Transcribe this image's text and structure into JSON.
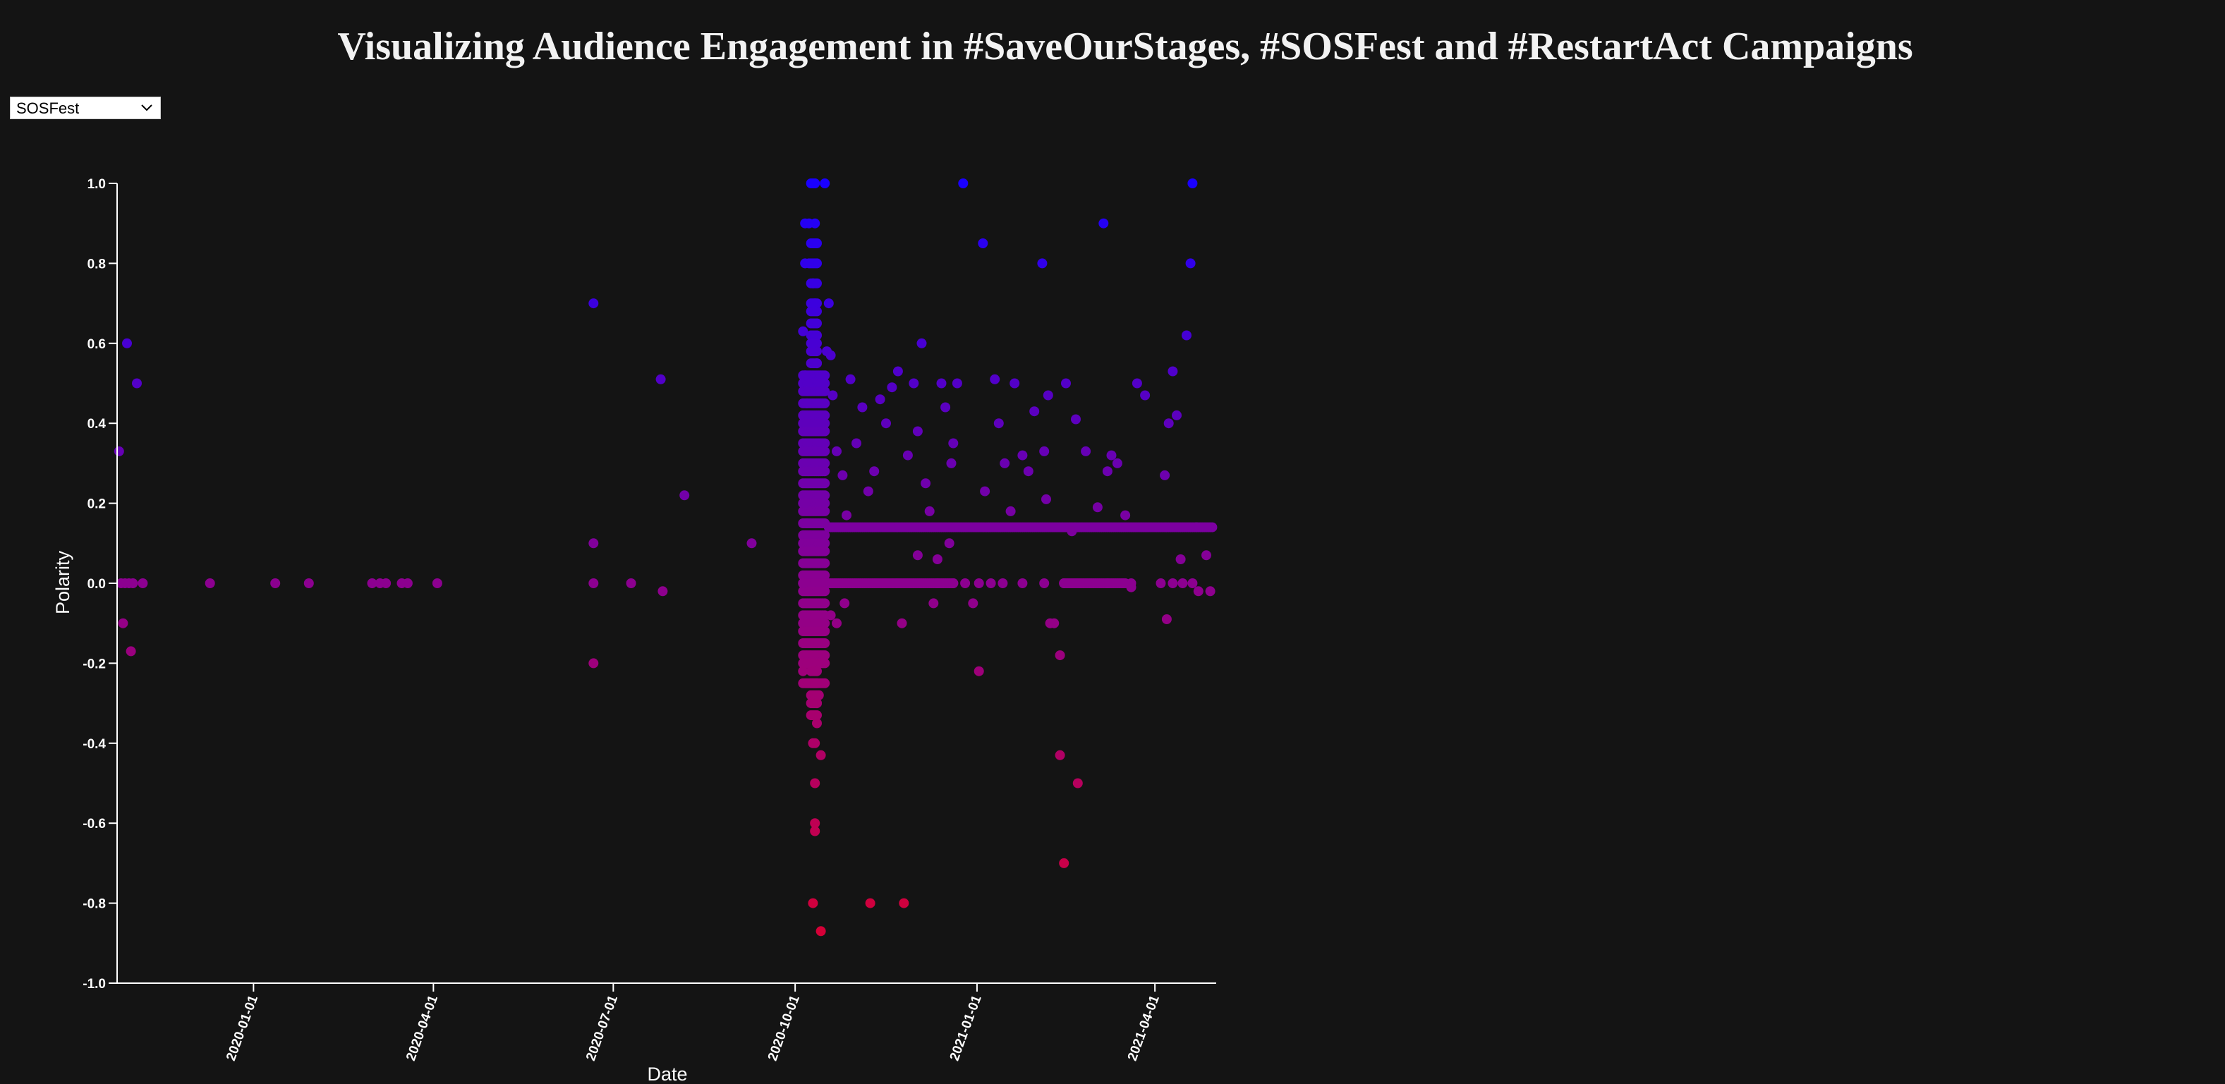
{
  "page": {
    "title": "Visualizing Audience Engagement in #SaveOurStages, #SOSFest and #RestartAct Campaigns"
  },
  "controls": {
    "campaign_select": {
      "value": "SOSFest",
      "icon": "chevron-down-icon"
    }
  },
  "chart_data": {
    "type": "scatter",
    "title": "",
    "xlabel": "Date",
    "ylabel": "Polarity",
    "x_type": "date",
    "xlim": [
      "2019-10-24",
      "2021-05-02"
    ],
    "ylim": [
      -1.0,
      1.0
    ],
    "x_ticks": [
      "2020-01-01",
      "2020-04-01",
      "2020-07-01",
      "2020-10-01",
      "2021-01-01",
      "2021-04-01"
    ],
    "y_ticks": [
      "1.0",
      "0.8",
      "0.6",
      "0.4",
      "0.2",
      "0.0",
      "-0.2",
      "-0.4",
      "-0.6",
      "-0.8",
      "-1.0"
    ],
    "grid": false,
    "color_scale": {
      "low": "#e0002a",
      "mid": "#8c0090",
      "high": "#1a00ff"
    },
    "series": [
      {
        "points": [
          [
            "2019-10-25",
            0.33
          ],
          [
            "2019-10-26",
            0.0
          ],
          [
            "2019-10-27",
            -0.1
          ],
          [
            "2019-10-28",
            0.0
          ],
          [
            "2019-10-29",
            0.6
          ],
          [
            "2019-10-30",
            0.0
          ],
          [
            "2019-10-31",
            -0.17
          ],
          [
            "2019-11-01",
            0.0
          ],
          [
            "2019-11-03",
            0.5
          ],
          [
            "2019-11-06",
            0.0
          ],
          [
            "2019-12-10",
            0.0
          ],
          [
            "2020-01-12",
            0.0
          ],
          [
            "2020-01-29",
            0.0
          ],
          [
            "2020-03-01",
            0.0
          ],
          [
            "2020-03-05",
            0.0
          ],
          [
            "2020-03-08",
            0.0
          ],
          [
            "2020-03-16",
            0.0
          ],
          [
            "2020-03-19",
            0.0
          ],
          [
            "2020-04-03",
            0.0
          ],
          [
            "2020-06-21",
            0.7
          ],
          [
            "2020-06-21",
            0.1
          ],
          [
            "2020-06-21",
            0.0
          ],
          [
            "2020-06-21",
            -0.2
          ],
          [
            "2020-07-10",
            0.0
          ],
          [
            "2020-07-25",
            0.51
          ],
          [
            "2020-07-26",
            -0.02
          ],
          [
            "2020-08-06",
            0.22
          ],
          [
            "2020-09-09",
            0.1
          ],
          [
            "2020-10-05",
            0.0
          ],
          [
            "2020-10-05",
            -0.22
          ],
          [
            "2020-10-05",
            0.63
          ],
          [
            "2020-10-06",
            0.9
          ],
          [
            "2020-10-06",
            0.8
          ],
          [
            "2020-10-06",
            0.52
          ],
          [
            "2020-10-06",
            0.2
          ],
          [
            "2020-10-07",
            0.45
          ],
          [
            "2020-10-07",
            0.15
          ],
          [
            "2020-10-08",
            0.9
          ],
          [
            "2020-10-08",
            0.8
          ],
          [
            "2020-10-09",
            1.0
          ],
          [
            "2020-10-10",
            1.0
          ],
          [
            "2020-10-11",
            1.0
          ],
          [
            "2020-10-11",
            0.9
          ],
          [
            "2020-10-10",
            0.75
          ],
          [
            "2020-10-11",
            0.7
          ],
          [
            "2020-10-10",
            0.6
          ],
          [
            "2020-10-12",
            0.55
          ],
          [
            "2020-10-11",
            -0.4
          ],
          [
            "2020-10-10",
            -0.4
          ],
          [
            "2020-10-11",
            -0.5
          ],
          [
            "2020-10-11",
            -0.6
          ],
          [
            "2020-10-11",
            -0.62
          ],
          [
            "2020-10-10",
            -0.8
          ],
          [
            "2020-10-12",
            -0.35
          ],
          [
            "2020-10-13",
            -0.28
          ],
          [
            "2020-10-12",
            -0.3
          ],
          [
            "2020-10-14",
            -0.43
          ],
          [
            "2020-10-14",
            -0.87
          ],
          [
            "2020-10-16",
            1.0
          ],
          [
            "2020-10-17",
            0.58
          ],
          [
            "2020-10-18",
            0.7
          ],
          [
            "2020-10-19",
            0.57
          ],
          [
            "2020-10-20",
            0.47
          ],
          [
            "2020-10-22",
            0.33
          ],
          [
            "2020-10-25",
            0.27
          ],
          [
            "2020-10-27",
            0.17
          ],
          [
            "2020-10-19",
            -0.08
          ],
          [
            "2020-10-22",
            -0.1
          ],
          [
            "2020-10-26",
            -0.05
          ],
          [
            "2020-10-29",
            0.51
          ],
          [
            "2020-11-01",
            0.35
          ],
          [
            "2020-11-04",
            0.44
          ],
          [
            "2020-11-07",
            0.23
          ],
          [
            "2020-11-08",
            -0.8
          ],
          [
            "2020-11-10",
            0.28
          ],
          [
            "2020-11-13",
            0.46
          ],
          [
            "2020-11-16",
            0.4
          ],
          [
            "2020-11-19",
            0.49
          ],
          [
            "2020-11-22",
            0.53
          ],
          [
            "2020-11-24",
            -0.1
          ],
          [
            "2020-11-25",
            -0.8
          ],
          [
            "2020-11-27",
            0.32
          ],
          [
            "2020-11-30",
            0.5
          ],
          [
            "2020-12-02",
            0.38
          ],
          [
            "2020-12-04",
            0.6
          ],
          [
            "2020-12-06",
            0.25
          ],
          [
            "2020-12-08",
            0.18
          ],
          [
            "2020-12-10",
            -0.05
          ],
          [
            "2020-12-12",
            0.06
          ],
          [
            "2020-12-14",
            0.5
          ],
          [
            "2020-12-16",
            0.44
          ],
          [
            "2020-12-18",
            0.1
          ],
          [
            "2020-12-19",
            0.3
          ],
          [
            "2020-12-20",
            0.35
          ],
          [
            "2020-12-22",
            0.5
          ],
          [
            "2020-12-25",
            1.0
          ],
          [
            "2020-12-30",
            -0.05
          ],
          [
            "2021-01-04",
            0.85
          ],
          [
            "2021-01-05",
            0.23
          ],
          [
            "2021-01-02",
            -0.22
          ],
          [
            "2021-01-10",
            0.51
          ],
          [
            "2021-01-12",
            0.4
          ],
          [
            "2021-01-15",
            0.3
          ],
          [
            "2021-01-18",
            0.18
          ],
          [
            "2021-01-20",
            0.5
          ],
          [
            "2021-01-24",
            0.32
          ],
          [
            "2021-01-27",
            0.28
          ],
          [
            "2021-01-30",
            0.43
          ],
          [
            "2021-02-03",
            0.8
          ],
          [
            "2021-02-04",
            0.33
          ],
          [
            "2021-02-05",
            0.21
          ],
          [
            "2021-02-06",
            0.47
          ],
          [
            "2021-02-07",
            -0.1
          ],
          [
            "2021-02-09",
            -0.1
          ],
          [
            "2021-02-12",
            -0.18
          ],
          [
            "2021-02-12",
            -0.43
          ],
          [
            "2021-02-14",
            -0.7
          ],
          [
            "2021-02-15",
            0.5
          ],
          [
            "2021-02-18",
            0.13
          ],
          [
            "2021-02-20",
            0.41
          ],
          [
            "2021-02-21",
            -0.5
          ],
          [
            "2021-02-25",
            0.33
          ],
          [
            "2021-03-03",
            0.19
          ],
          [
            "2021-03-06",
            0.9
          ],
          [
            "2021-03-08",
            0.28
          ],
          [
            "2021-03-10",
            0.32
          ],
          [
            "2021-03-13",
            0.3
          ],
          [
            "2021-03-17",
            0.17
          ],
          [
            "2021-03-20",
            -0.01
          ],
          [
            "2021-03-23",
            0.5
          ],
          [
            "2021-03-27",
            0.47
          ],
          [
            "2021-04-06",
            0.27
          ],
          [
            "2021-04-07",
            -0.09
          ],
          [
            "2021-04-08",
            0.4
          ],
          [
            "2021-04-10",
            0.53
          ],
          [
            "2021-04-12",
            0.42
          ],
          [
            "2021-04-14",
            0.06
          ],
          [
            "2021-04-17",
            0.62
          ],
          [
            "2021-04-19",
            0.8
          ],
          [
            "2021-04-20",
            1.0
          ],
          [
            "2021-04-20",
            0.0
          ],
          [
            "2021-04-23",
            -0.02
          ],
          [
            "2021-04-27",
            0.07
          ],
          [
            "2021-04-29",
            -0.02
          ],
          [
            "2021-04-22",
            0.14
          ],
          [
            "2021-04-15",
            0.0
          ],
          [
            "2021-04-10",
            0.0
          ],
          [
            "2021-04-04",
            0.0
          ],
          [
            "2021-03-20",
            0.0
          ],
          [
            "2021-03-08",
            0.0
          ],
          [
            "2021-02-14",
            0.0
          ],
          [
            "2021-02-04",
            0.0
          ],
          [
            "2021-01-24",
            0.0
          ],
          [
            "2021-01-14",
            0.0
          ],
          [
            "2021-01-08",
            0.0
          ],
          [
            "2021-01-02",
            0.0
          ],
          [
            "2020-12-26",
            0.0
          ],
          [
            "2020-12-20",
            0.0
          ],
          [
            "2020-12-12",
            0.0
          ],
          [
            "2020-12-02",
            0.07
          ]
        ]
      }
    ],
    "clusters": [
      {
        "from": "2020-10-05",
        "to": "2020-10-16",
        "y_values": [
          0.52,
          0.5,
          0.48,
          0.45,
          0.42,
          0.4,
          0.38,
          0.35,
          0.33,
          0.3,
          0.28,
          0.25,
          0.22,
          0.2,
          0.18,
          0.15,
          0.12,
          0.1,
          0.08,
          0.05,
          0.02,
          0.0,
          -0.02,
          -0.05,
          -0.08,
          -0.1,
          -0.12,
          -0.15,
          -0.18,
          -0.2,
          -0.25
        ]
      },
      {
        "from": "2020-10-09",
        "to": "2020-10-12",
        "y_values": [
          0.85,
          0.8,
          0.75,
          0.7,
          0.68,
          0.65,
          0.62,
          0.6,
          0.58,
          0.55,
          -0.22,
          -0.25,
          -0.28,
          -0.3,
          -0.33
        ]
      }
    ],
    "bands": [
      {
        "y": 0.14,
        "from": "2020-10-18",
        "to": "2021-04-30"
      },
      {
        "y": 0.0,
        "from": "2020-10-18",
        "to": "2020-12-20"
      },
      {
        "y": 0.0,
        "from": "2021-02-14",
        "to": "2021-03-17"
      }
    ]
  }
}
